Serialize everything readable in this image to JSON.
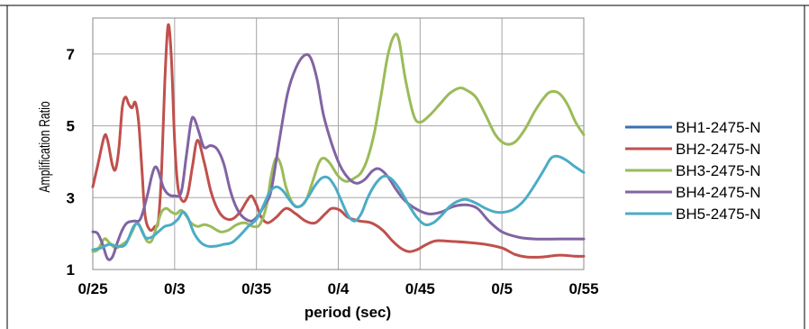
{
  "chart_data": {
    "type": "line",
    "title": "",
    "xlabel": "period (sec)",
    "ylabel": "Amplification Ratio",
    "xlim": [
      0.25,
      0.55
    ],
    "ylim": [
      1,
      8
    ],
    "x_ticks": [
      0.25,
      0.3,
      0.35,
      0.4,
      0.45,
      0.5,
      0.55
    ],
    "x_tick_labels": [
      "0/25",
      "0/3",
      "0/35",
      "0/4",
      "0/45",
      "0/5",
      "0/55"
    ],
    "y_ticks": [
      1,
      3,
      5,
      7
    ],
    "y_tick_labels": [
      "1",
      "3",
      "5",
      "7"
    ],
    "grid": true,
    "legend_position": "right",
    "series": [
      {
        "name": "BH1-2475-N",
        "color": "#3a6fb5",
        "points": []
      },
      {
        "name": "BH2-2475-N",
        "color": "#c0504d",
        "points": [
          [
            0.25,
            3.3
          ],
          [
            0.253,
            3.9
          ],
          [
            0.257,
            4.7
          ],
          [
            0.259,
            4.6
          ],
          [
            0.262,
            3.9
          ],
          [
            0.264,
            3.8
          ],
          [
            0.266,
            4.4
          ],
          [
            0.268,
            5.5
          ],
          [
            0.27,
            5.8
          ],
          [
            0.272,
            5.6
          ],
          [
            0.274,
            5.5
          ],
          [
            0.276,
            5.65
          ],
          [
            0.278,
            5.1
          ],
          [
            0.28,
            3.8
          ],
          [
            0.282,
            2.5
          ],
          [
            0.285,
            2.1
          ],
          [
            0.288,
            2.2
          ],
          [
            0.29,
            2.35
          ],
          [
            0.292,
            3.7
          ],
          [
            0.294,
            6.2
          ],
          [
            0.296,
            7.8
          ],
          [
            0.298,
            6.9
          ],
          [
            0.3,
            4.6
          ],
          [
            0.302,
            3.3
          ],
          [
            0.305,
            2.9
          ],
          [
            0.308,
            3.1
          ],
          [
            0.311,
            3.9
          ],
          [
            0.314,
            4.6
          ],
          [
            0.318,
            4.0
          ],
          [
            0.322,
            3.2
          ],
          [
            0.326,
            2.7
          ],
          [
            0.33,
            2.45
          ],
          [
            0.335,
            2.4
          ],
          [
            0.34,
            2.6
          ],
          [
            0.344,
            2.9
          ],
          [
            0.347,
            3.05
          ],
          [
            0.35,
            2.8
          ],
          [
            0.353,
            2.45
          ],
          [
            0.357,
            2.3
          ],
          [
            0.362,
            2.45
          ],
          [
            0.368,
            2.7
          ],
          [
            0.374,
            2.55
          ],
          [
            0.38,
            2.35
          ],
          [
            0.386,
            2.3
          ],
          [
            0.392,
            2.55
          ],
          [
            0.396,
            2.7
          ],
          [
            0.401,
            2.65
          ],
          [
            0.406,
            2.45
          ],
          [
            0.413,
            2.35
          ],
          [
            0.42,
            2.3
          ],
          [
            0.427,
            2.1
          ],
          [
            0.433,
            1.8
          ],
          [
            0.438,
            1.6
          ],
          [
            0.443,
            1.5
          ],
          [
            0.448,
            1.55
          ],
          [
            0.454,
            1.7
          ],
          [
            0.46,
            1.8
          ],
          [
            0.47,
            1.78
          ],
          [
            0.48,
            1.75
          ],
          [
            0.49,
            1.7
          ],
          [
            0.5,
            1.6
          ],
          [
            0.508,
            1.42
          ],
          [
            0.515,
            1.35
          ],
          [
            0.525,
            1.35
          ],
          [
            0.535,
            1.4
          ],
          [
            0.545,
            1.37
          ],
          [
            0.55,
            1.37
          ]
        ]
      },
      {
        "name": "BH3-2475-N",
        "color": "#9bbb59",
        "points": [
          [
            0.25,
            1.5
          ],
          [
            0.253,
            1.55
          ],
          [
            0.257,
            1.85
          ],
          [
            0.26,
            1.75
          ],
          [
            0.264,
            1.6
          ],
          [
            0.268,
            1.7
          ],
          [
            0.271,
            1.8
          ],
          [
            0.274,
            2.05
          ],
          [
            0.277,
            2.3
          ],
          [
            0.28,
            2.1
          ],
          [
            0.283,
            1.8
          ],
          [
            0.286,
            1.8
          ],
          [
            0.289,
            2.2
          ],
          [
            0.292,
            2.6
          ],
          [
            0.295,
            2.7
          ],
          [
            0.298,
            2.6
          ],
          [
            0.301,
            2.55
          ],
          [
            0.304,
            2.65
          ],
          [
            0.307,
            2.5
          ],
          [
            0.31,
            2.3
          ],
          [
            0.314,
            2.2
          ],
          [
            0.318,
            2.25
          ],
          [
            0.322,
            2.2
          ],
          [
            0.328,
            2.05
          ],
          [
            0.333,
            2.1
          ],
          [
            0.338,
            2.25
          ],
          [
            0.343,
            2.3
          ],
          [
            0.348,
            2.2
          ],
          [
            0.352,
            2.25
          ],
          [
            0.356,
            2.75
          ],
          [
            0.359,
            3.6
          ],
          [
            0.362,
            4.1
          ],
          [
            0.365,
            3.9
          ],
          [
            0.368,
            3.3
          ],
          [
            0.372,
            2.85
          ],
          [
            0.376,
            2.75
          ],
          [
            0.38,
            2.9
          ],
          [
            0.384,
            3.4
          ],
          [
            0.388,
            3.95
          ],
          [
            0.391,
            4.1
          ],
          [
            0.395,
            3.95
          ],
          [
            0.4,
            3.6
          ],
          [
            0.405,
            3.45
          ],
          [
            0.41,
            3.55
          ],
          [
            0.414,
            3.7
          ],
          [
            0.418,
            4.1
          ],
          [
            0.422,
            4.8
          ],
          [
            0.426,
            5.8
          ],
          [
            0.43,
            6.9
          ],
          [
            0.434,
            7.5
          ],
          [
            0.437,
            7.4
          ],
          [
            0.441,
            6.3
          ],
          [
            0.446,
            5.3
          ],
          [
            0.45,
            5.1
          ],
          [
            0.456,
            5.3
          ],
          [
            0.462,
            5.6
          ],
          [
            0.468,
            5.9
          ],
          [
            0.474,
            6.05
          ],
          [
            0.478,
            6.0
          ],
          [
            0.484,
            5.8
          ],
          [
            0.49,
            5.3
          ],
          [
            0.496,
            4.75
          ],
          [
            0.502,
            4.5
          ],
          [
            0.508,
            4.55
          ],
          [
            0.514,
            4.9
          ],
          [
            0.52,
            5.4
          ],
          [
            0.526,
            5.8
          ],
          [
            0.53,
            5.95
          ],
          [
            0.535,
            5.9
          ],
          [
            0.54,
            5.6
          ],
          [
            0.545,
            5.1
          ],
          [
            0.55,
            4.75
          ]
        ]
      },
      {
        "name": "BH4-2475-N",
        "color": "#8064a2",
        "points": [
          [
            0.25,
            2.05
          ],
          [
            0.253,
            2.0
          ],
          [
            0.256,
            1.7
          ],
          [
            0.259,
            1.3
          ],
          [
            0.262,
            1.35
          ],
          [
            0.265,
            1.75
          ],
          [
            0.268,
            2.1
          ],
          [
            0.271,
            2.3
          ],
          [
            0.275,
            2.35
          ],
          [
            0.279,
            2.4
          ],
          [
            0.283,
            3.0
          ],
          [
            0.286,
            3.6
          ],
          [
            0.288,
            3.85
          ],
          [
            0.29,
            3.75
          ],
          [
            0.293,
            3.3
          ],
          [
            0.296,
            3.1
          ],
          [
            0.3,
            3.05
          ],
          [
            0.304,
            3.15
          ],
          [
            0.307,
            4.1
          ],
          [
            0.31,
            5.1
          ],
          [
            0.312,
            5.2
          ],
          [
            0.315,
            4.8
          ],
          [
            0.318,
            4.4
          ],
          [
            0.322,
            4.45
          ],
          [
            0.326,
            4.35
          ],
          [
            0.33,
            3.95
          ],
          [
            0.334,
            3.2
          ],
          [
            0.338,
            2.7
          ],
          [
            0.342,
            2.45
          ],
          [
            0.347,
            2.35
          ],
          [
            0.351,
            2.5
          ],
          [
            0.355,
            2.8
          ],
          [
            0.359,
            3.2
          ],
          [
            0.364,
            4.6
          ],
          [
            0.369,
            5.9
          ],
          [
            0.374,
            6.6
          ],
          [
            0.379,
            6.95
          ],
          [
            0.383,
            6.9
          ],
          [
            0.387,
            6.3
          ],
          [
            0.391,
            5.3
          ],
          [
            0.396,
            4.5
          ],
          [
            0.401,
            3.9
          ],
          [
            0.406,
            3.55
          ],
          [
            0.411,
            3.4
          ],
          [
            0.416,
            3.5
          ],
          [
            0.421,
            3.75
          ],
          [
            0.425,
            3.8
          ],
          [
            0.43,
            3.6
          ],
          [
            0.435,
            3.25
          ],
          [
            0.44,
            2.95
          ],
          [
            0.447,
            2.7
          ],
          [
            0.455,
            2.55
          ],
          [
            0.463,
            2.6
          ],
          [
            0.47,
            2.75
          ],
          [
            0.478,
            2.8
          ],
          [
            0.485,
            2.7
          ],
          [
            0.492,
            2.35
          ],
          [
            0.5,
            2.05
          ],
          [
            0.51,
            1.9
          ],
          [
            0.52,
            1.85
          ],
          [
            0.535,
            1.85
          ],
          [
            0.55,
            1.85
          ]
        ]
      },
      {
        "name": "BH5-2475-N",
        "color": "#4bacc6",
        "points": [
          [
            0.25,
            1.55
          ],
          [
            0.255,
            1.6
          ],
          [
            0.26,
            1.7
          ],
          [
            0.265,
            1.65
          ],
          [
            0.27,
            1.7
          ],
          [
            0.275,
            2.2
          ],
          [
            0.278,
            2.25
          ],
          [
            0.282,
            1.9
          ],
          [
            0.286,
            1.9
          ],
          [
            0.29,
            2.05
          ],
          [
            0.294,
            2.2
          ],
          [
            0.298,
            2.25
          ],
          [
            0.302,
            2.4
          ],
          [
            0.305,
            2.6
          ],
          [
            0.308,
            2.45
          ],
          [
            0.312,
            2.0
          ],
          [
            0.316,
            1.75
          ],
          [
            0.32,
            1.65
          ],
          [
            0.325,
            1.65
          ],
          [
            0.33,
            1.7
          ],
          [
            0.335,
            1.75
          ],
          [
            0.34,
            1.95
          ],
          [
            0.345,
            2.2
          ],
          [
            0.35,
            2.4
          ],
          [
            0.354,
            2.75
          ],
          [
            0.358,
            3.15
          ],
          [
            0.362,
            3.3
          ],
          [
            0.366,
            3.2
          ],
          [
            0.37,
            2.95
          ],
          [
            0.374,
            2.75
          ],
          [
            0.378,
            2.8
          ],
          [
            0.382,
            3.05
          ],
          [
            0.386,
            3.35
          ],
          [
            0.39,
            3.55
          ],
          [
            0.394,
            3.55
          ],
          [
            0.398,
            3.3
          ],
          [
            0.402,
            2.9
          ],
          [
            0.406,
            2.5
          ],
          [
            0.41,
            2.35
          ],
          [
            0.414,
            2.55
          ],
          [
            0.418,
            3.0
          ],
          [
            0.423,
            3.4
          ],
          [
            0.428,
            3.6
          ],
          [
            0.433,
            3.5
          ],
          [
            0.438,
            3.2
          ],
          [
            0.443,
            2.8
          ],
          [
            0.448,
            2.45
          ],
          [
            0.453,
            2.25
          ],
          [
            0.458,
            2.3
          ],
          [
            0.463,
            2.5
          ],
          [
            0.468,
            2.75
          ],
          [
            0.473,
            2.9
          ],
          [
            0.478,
            2.95
          ],
          [
            0.484,
            2.85
          ],
          [
            0.49,
            2.7
          ],
          [
            0.496,
            2.6
          ],
          [
            0.502,
            2.6
          ],
          [
            0.508,
            2.7
          ],
          [
            0.514,
            2.95
          ],
          [
            0.52,
            3.35
          ],
          [
            0.526,
            3.8
          ],
          [
            0.53,
            4.1
          ],
          [
            0.534,
            4.15
          ],
          [
            0.539,
            4.05
          ],
          [
            0.545,
            3.85
          ],
          [
            0.55,
            3.7
          ]
        ]
      }
    ]
  }
}
